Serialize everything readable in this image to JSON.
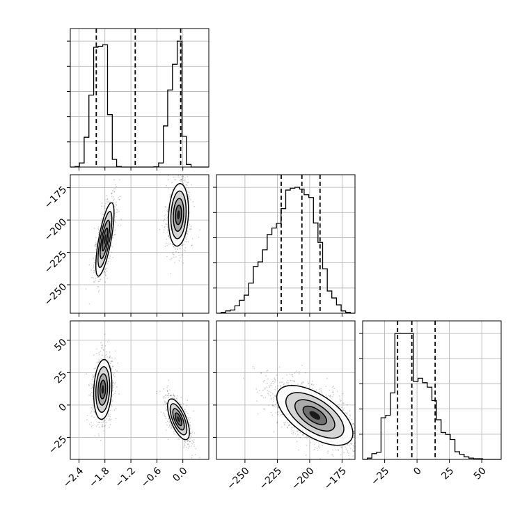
{
  "chart_data": {
    "type": "corner",
    "grid": true,
    "colors": {
      "frame": "#000000",
      "grid": "#b0b0b0",
      "line": "#000000",
      "points": "#000000"
    },
    "parameters": [
      {
        "range": [
          -2.6,
          0.6
        ],
        "quantiles": [
          -2.0,
          -1.1,
          -0.05
        ],
        "tick_values": [
          -2.4,
          -1.8,
          -1.2,
          -0.6,
          0.0
        ],
        "tick_labels": [
          "−2.4",
          "−1.8",
          "−1.2",
          "−0.6",
          "0.0"
        ]
      },
      {
        "range": [
          -272,
          -165
        ],
        "quantiles": [
          -222,
          -206,
          -192
        ],
        "tick_values": [
          -250,
          -225,
          -200,
          -175
        ],
        "tick_labels": [
          "−250",
          "−225",
          "−200",
          "−175"
        ]
      },
      {
        "range": [
          -42,
          65
        ],
        "quantiles": [
          -15,
          -4,
          14
        ],
        "tick_values": [
          -25,
          0,
          25,
          50
        ],
        "tick_labels": [
          "−25",
          "0",
          "25",
          "50"
        ]
      }
    ],
    "histograms": [
      {
        "parameter": 0,
        "edges": [
          -2.6,
          -2.49,
          -2.39,
          -2.28,
          -2.17,
          -2.06,
          -1.96,
          -1.85,
          -1.74,
          -1.63,
          -1.53,
          -1.42,
          -1.31,
          -1.21,
          -1.1,
          -0.99,
          -0.88,
          -0.78,
          -0.67,
          -0.56,
          -0.45,
          -0.35,
          -0.24,
          -0.13,
          -0.02,
          0.08,
          0.19,
          0.3,
          0.41,
          0.51,
          0.6
        ],
        "counts": [
          0,
          10,
          80,
          580,
          1400,
          2330,
          2350,
          2380,
          1020,
          150,
          10,
          0,
          0,
          0,
          0,
          0,
          0,
          0,
          5,
          80,
          800,
          1500,
          2000,
          2450,
          600,
          50,
          0,
          0,
          0,
          0
        ]
      },
      {
        "parameter": 1,
        "edges": [
          -272,
          -268.4,
          -264.9,
          -261.3,
          -257.8,
          -254.2,
          -250.6,
          -247.1,
          -243.5,
          -239.9,
          -236.4,
          -232.8,
          -229.2,
          -225.7,
          -222.1,
          -218.5,
          -215,
          -211.4,
          -207.8,
          -204.3,
          -200.7,
          -197.1,
          -193.6,
          -190,
          -186.4,
          -182.9,
          -179.3,
          -175.7,
          -172.2,
          -168.6,
          -165
        ],
        "counts": [
          0,
          20,
          50,
          70,
          160,
          280,
          390,
          650,
          1010,
          1110,
          1370,
          1700,
          1840,
          1940,
          2260,
          2660,
          2700,
          2720,
          2680,
          2560,
          2500,
          1950,
          1530,
          960,
          480,
          330,
          180,
          50,
          20,
          0
        ]
      },
      {
        "parameter": 2,
        "edges": [
          -42,
          -38.4,
          -34.9,
          -31.3,
          -27.8,
          -24.2,
          -20.6,
          -17.1,
          -13.5,
          -9.9,
          -6.4,
          -2.8,
          0.8,
          4.3,
          7.9,
          11.5,
          15,
          18.6,
          22.2,
          25.7,
          29.3,
          32.9,
          36.4,
          40,
          43.6,
          47.1,
          50.7,
          54.3,
          57.8,
          61.4,
          65
        ],
        "counts": [
          0,
          20,
          90,
          110,
          650,
          690,
          1040,
          1970,
          1970,
          1970,
          1970,
          1220,
          1270,
          1200,
          1130,
          920,
          620,
          420,
          390,
          310,
          120,
          80,
          40,
          20,
          10,
          10,
          0,
          0,
          0,
          0
        ]
      }
    ],
    "contour_panels": [
      {
        "x_parameter": 0,
        "y_parameter": 1,
        "modes": [
          {
            "center": [
              -1.8,
              -215
            ],
            "sigma": [
              0.1,
              13.5
            ],
            "rho": 0.72,
            "weight": 0.5
          },
          {
            "center": [
              -0.1,
              -196
            ],
            "sigma": [
              0.11,
              11.5
            ],
            "rho": 0.15,
            "weight": 0.5
          }
        ]
      },
      {
        "x_parameter": 0,
        "y_parameter": 2,
        "modes": [
          {
            "center": [
              -1.85,
              12
            ],
            "sigma": [
              0.1,
              11
            ],
            "rho": 0.15,
            "weight": 0.5
          },
          {
            "center": [
              -0.1,
              -11
            ],
            "sigma": [
              0.12,
              7.5
            ],
            "rho": -0.65,
            "weight": 0.5
          }
        ]
      },
      {
        "x_parameter": 1,
        "y_parameter": 2,
        "modes": [
          {
            "center": [
              -196,
              -8
            ],
            "sigma": [
              14,
              11
            ],
            "rho": -0.6,
            "weight": 1.0
          }
        ]
      }
    ]
  }
}
